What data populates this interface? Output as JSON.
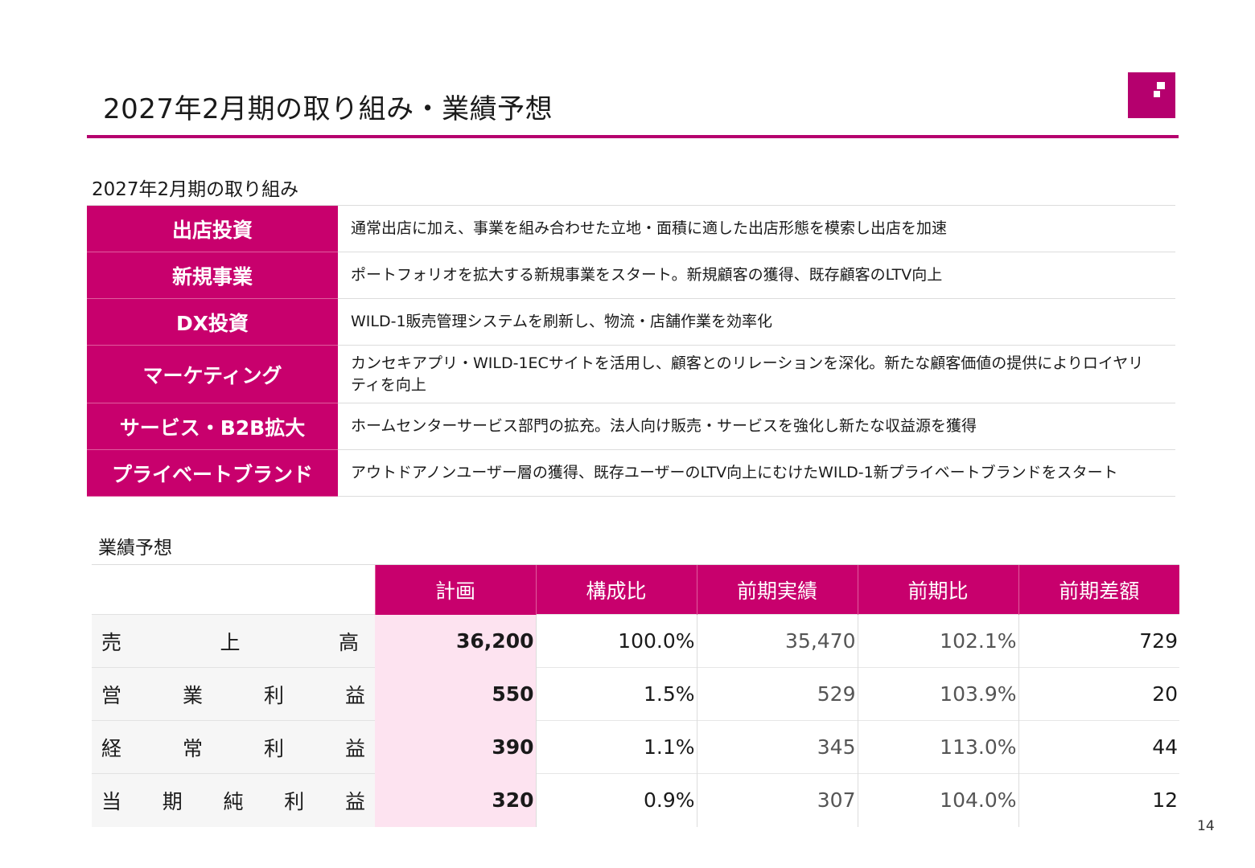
{
  "header": {
    "title": "2027年2月期の取り組み・業績予想",
    "logo_color": "#b5006e"
  },
  "initiatives": {
    "heading": "2027年2月期の取り組み",
    "items": [
      {
        "label": "出店投資",
        "desc": "通常出店に加え、事業を組み合わせた立地・面積に適した出店形態を模索し出店を加速"
      },
      {
        "label": "新規事業",
        "desc": "ポートフォリオを拡大する新規事業をスタート。新規顧客の獲得、既存顧客のLTV向上"
      },
      {
        "label": "DX投資",
        "desc": "WILD-1販売管理システムを刷新し、物流・店舗作業を効率化"
      },
      {
        "label": "マーケティング",
        "desc": "カンセキアプリ・WILD-1ECサイトを活用し、顧客とのリレーションを深化。新たな顧客価値の提供によりロイヤリティを向上"
      },
      {
        "label": "サービス・B2B拡大",
        "desc": "ホームセンターサービス部門の拡充。法人向け販売・サービスを強化し新たな収益源を獲得"
      },
      {
        "label": "プライベートブランド",
        "desc": "アウトドアノンユーザー層の獲得、既存ユーザーのLTV向上にむけたWILD-1新プライベートブランドをスタート"
      }
    ]
  },
  "forecast": {
    "heading": "業績予想",
    "columns": [
      "計画",
      "構成比",
      "前期実績",
      "前期比",
      "前期差額"
    ],
    "rows": [
      {
        "label": [
          "売",
          "上",
          "高"
        ],
        "plan": "36,200",
        "ratio": "100.0%",
        "prev": "35,470",
        "yoy": "102.1%",
        "diff": "729"
      },
      {
        "label": [
          "営",
          "業",
          "利",
          "益"
        ],
        "plan": "550",
        "ratio": "1.5%",
        "prev": "529",
        "yoy": "103.9%",
        "diff": "20"
      },
      {
        "label": [
          "経",
          "常",
          "利",
          "益"
        ],
        "plan": "390",
        "ratio": "1.1%",
        "prev": "345",
        "yoy": "113.0%",
        "diff": "44"
      },
      {
        "label": [
          "当",
          "期",
          "純",
          "利",
          "益"
        ],
        "plan": "320",
        "ratio": "0.9%",
        "prev": "307",
        "yoy": "104.0%",
        "diff": "12"
      }
    ]
  },
  "footer": {
    "page_number": "14"
  },
  "colors": {
    "accent": "#c8006d",
    "plan_highlight": "#fde3f0"
  }
}
